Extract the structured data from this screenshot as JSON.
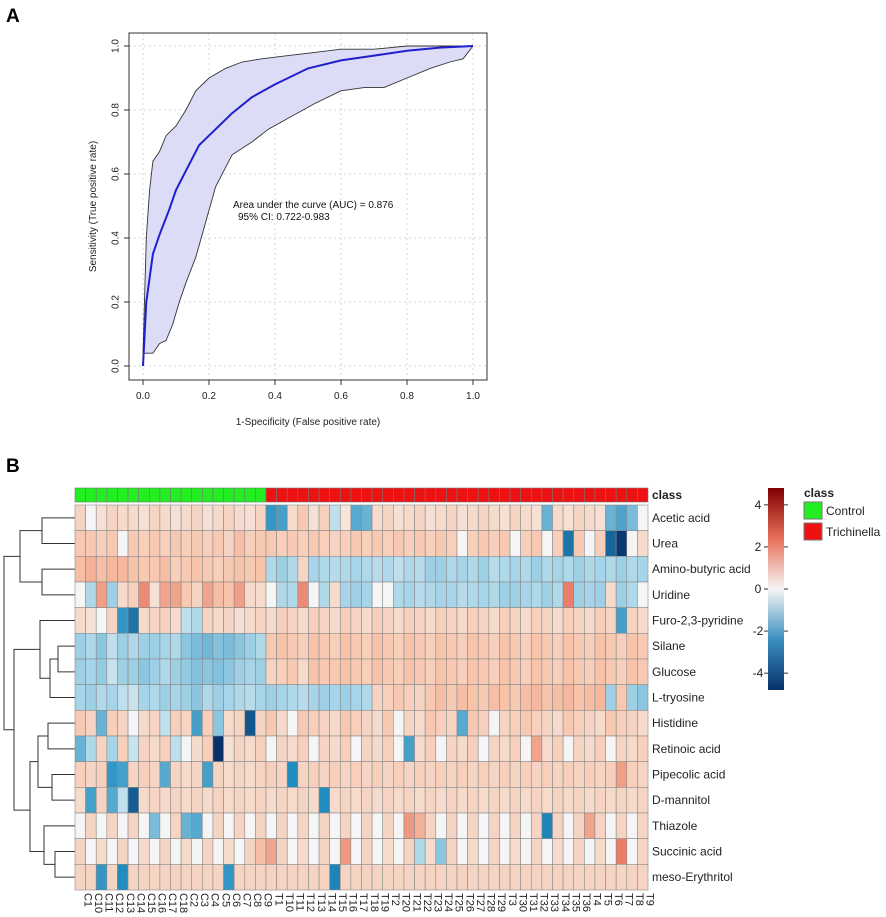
{
  "panel_labels": {
    "a": "A",
    "b": "B"
  },
  "colors": {
    "roc_line": "#1f1fcc",
    "ci_fill": "#dcdcf6",
    "ci_border": "#333333",
    "control": "#22ee22",
    "trichinella": "#ee1111",
    "neg": "#08306b",
    "mid": "#f5f5f5",
    "pos": "#7f0000"
  },
  "chart_data": [
    {
      "type": "line",
      "title": "",
      "xlabel": "1-Specificity (False positive rate)",
      "ylabel": "Sensitivity (True positive rate)",
      "xlim": [
        0,
        1
      ],
      "ylim": [
        0,
        1
      ],
      "xticks": [
        "0.0",
        "0.2",
        "0.4",
        "0.6",
        "0.8",
        "1.0"
      ],
      "yticks": [
        "0.0",
        "0.2",
        "0.4",
        "0.6",
        "0.8",
        "1.0"
      ],
      "grid": true,
      "annotation": {
        "line1": "Area under the curve (AUC) = 0.876",
        "line2": "95% CI: 0.722-0.983"
      },
      "roc": {
        "x": [
          0,
          0.01,
          0.03,
          0.05,
          0.08,
          0.1,
          0.13,
          0.17,
          0.22,
          0.27,
          0.33,
          0.4,
          0.5,
          0.6,
          0.7,
          0.8,
          0.9,
          1.0
        ],
        "y": [
          0,
          0.2,
          0.35,
          0.41,
          0.49,
          0.55,
          0.61,
          0.69,
          0.74,
          0.79,
          0.84,
          0.88,
          0.93,
          0.955,
          0.97,
          0.985,
          0.995,
          1.0
        ]
      },
      "ci_upper": {
        "x": [
          0,
          0.01,
          0.02,
          0.03,
          0.05,
          0.07,
          0.1,
          0.13,
          0.16,
          0.2,
          0.25,
          0.3,
          0.36,
          0.44,
          0.52,
          0.6,
          0.7,
          0.8,
          0.9,
          1.0
        ],
        "y": [
          0.04,
          0.4,
          0.55,
          0.64,
          0.67,
          0.72,
          0.75,
          0.8,
          0.86,
          0.9,
          0.93,
          0.95,
          0.96,
          0.97,
          0.98,
          0.99,
          0.99,
          1.0,
          1.0,
          1.0
        ]
      },
      "ci_lower": {
        "x": [
          0,
          0.03,
          0.05,
          0.07,
          0.09,
          0.11,
          0.13,
          0.16,
          0.19,
          0.22,
          0.27,
          0.33,
          0.38,
          0.45,
          0.52,
          0.6,
          0.67,
          0.73,
          0.8,
          0.87,
          0.93,
          0.97,
          1.0
        ],
        "y": [
          0.04,
          0.04,
          0.07,
          0.08,
          0.13,
          0.2,
          0.26,
          0.34,
          0.45,
          0.56,
          0.66,
          0.7,
          0.74,
          0.78,
          0.82,
          0.86,
          0.87,
          0.87,
          0.9,
          0.93,
          0.95,
          0.96,
          1.0
        ]
      }
    },
    {
      "type": "heatmap",
      "annotation_title": "class",
      "legend": [
        {
          "label": "Control"
        },
        {
          "label": "Trichinella"
        }
      ],
      "colorbar_ticks": [
        "4",
        "2",
        "0",
        "-2",
        "-4"
      ],
      "colorbar_range": [
        -4.8,
        4.8
      ],
      "rows": [
        "Acetic acid",
        "Urea",
        "Amino-butyric acid",
        "Uridine",
        "Furo-2,3-pyridine",
        "Silane",
        "Glucose",
        "L-tryosine",
        "Histidine",
        "Retinoic acid",
        "Pipecolic acid",
        "D-mannitol",
        "Thiazole",
        "Succinic acid",
        "meso-Erythritol"
      ],
      "columns": [
        "C1",
        "C10",
        "C11",
        "C12",
        "C13",
        "C14",
        "C15",
        "C16",
        "C17",
        "C18",
        "C2",
        "C3",
        "C4",
        "C5",
        "C6",
        "C7",
        "C8",
        "C9",
        "T1",
        "T10",
        "T11",
        "T12",
        "T13",
        "T14",
        "T15",
        "T16",
        "T17",
        "T18",
        "T19",
        "T2",
        "T20",
        "T21",
        "T22",
        "T23",
        "T24",
        "T25",
        "T26",
        "T27",
        "T28",
        "T29",
        "T3",
        "T30",
        "T31",
        "T32",
        "T33",
        "T34",
        "T35",
        "T36",
        "T4",
        "T5",
        "T6",
        "T7",
        "T8",
        "T9"
      ],
      "column_class": [
        "Control",
        "Control",
        "Control",
        "Control",
        "Control",
        "Control",
        "Control",
        "Control",
        "Control",
        "Control",
        "Control",
        "Control",
        "Control",
        "Control",
        "Control",
        "Control",
        "Control",
        "Control",
        "Trichinella",
        "Trichinella",
        "Trichinella",
        "Trichinella",
        "Trichinella",
        "Trichinella",
        "Trichinella",
        "Trichinella",
        "Trichinella",
        "Trichinella",
        "Trichinella",
        "Trichinella",
        "Trichinella",
        "Trichinella",
        "Trichinella",
        "Trichinella",
        "Trichinella",
        "Trichinella",
        "Trichinella",
        "Trichinella",
        "Trichinella",
        "Trichinella",
        "Trichinella",
        "Trichinella",
        "Trichinella",
        "Trichinella",
        "Trichinella",
        "Trichinella",
        "Trichinella",
        "Trichinella",
        "Trichinella",
        "Trichinella",
        "Trichinella",
        "Trichinella",
        "Trichinella",
        "Trichinella"
      ],
      "values": [
        [
          0.6,
          0.0,
          0.4,
          0.6,
          0.5,
          0.5,
          0.4,
          0.6,
          0.5,
          0.4,
          0.5,
          0.6,
          0.4,
          0.5,
          0.6,
          0.5,
          0.4,
          0.6,
          -2.2,
          -2.0,
          0.5,
          0.8,
          0.4,
          0.7,
          -0.6,
          0.3,
          -1.8,
          -1.6,
          0.5,
          0.6,
          0.4,
          0.5,
          0.6,
          0.4,
          0.5,
          0.6,
          0.4,
          0.5,
          0.6,
          0.5,
          0.4,
          0.6,
          0.5,
          0.4,
          -1.6,
          0.5,
          0.4,
          0.6,
          0.5,
          0.4,
          -1.6,
          -1.9,
          -1.4,
          0.0
        ],
        [
          0.8,
          0.8,
          0.7,
          0.8,
          0.0,
          0.8,
          0.7,
          0.8,
          0.7,
          0.8,
          0.7,
          0.8,
          0.7,
          0.8,
          0.6,
          1.0,
          0.7,
          0.8,
          0.8,
          0.7,
          0.8,
          0.7,
          0.8,
          0.7,
          0.6,
          0.7,
          0.8,
          0.7,
          0.8,
          0.7,
          0.8,
          0.7,
          0.8,
          0.7,
          0.8,
          0.7,
          0.0,
          0.7,
          0.8,
          0.7,
          0.8,
          0.0,
          0.7,
          0.8,
          0.0,
          0.7,
          -3.0,
          0.8,
          0.0,
          0.7,
          -3.4,
          -4.6,
          0.0,
          0.5
        ],
        [
          1.0,
          1.2,
          1.0,
          1.1,
          1.1,
          0.9,
          0.8,
          0.8,
          1.0,
          0.7,
          0.8,
          0.9,
          0.8,
          0.7,
          0.8,
          0.9,
          0.8,
          0.9,
          -0.8,
          -1.0,
          -0.8,
          0.6,
          -0.9,
          -0.8,
          -0.7,
          -0.8,
          -0.9,
          -0.8,
          -0.7,
          -0.8,
          -0.6,
          -0.8,
          -0.7,
          -1.0,
          -1.0,
          -0.8,
          -0.9,
          -0.8,
          -1.0,
          -0.7,
          -0.8,
          -0.9,
          -0.8,
          -1.0,
          -0.8,
          -0.9,
          -0.8,
          -1.0,
          -0.8,
          -0.9,
          -0.8,
          -1.0,
          -0.8,
          -0.9
        ],
        [
          0.0,
          -0.8,
          1.5,
          -1.0,
          0.5,
          0.7,
          1.8,
          0.4,
          1.4,
          1.4,
          0.8,
          0.6,
          1.4,
          1.0,
          0.9,
          1.5,
          0.5,
          0.5,
          0.0,
          -0.8,
          -0.8,
          1.8,
          0.0,
          -0.8,
          0.5,
          -0.9,
          -1.0,
          -0.9,
          0.0,
          0.0,
          -0.8,
          -0.9,
          -0.7,
          -0.8,
          -0.9,
          -0.9,
          -0.7,
          -0.8,
          -0.9,
          -0.8,
          -1.0,
          -1.0,
          -0.9,
          -0.8,
          -1.0,
          -0.8,
          2.0,
          -1.0,
          -0.9,
          -1.0,
          0.5,
          -1.0,
          -0.8,
          0.0
        ],
        [
          0.5,
          0.4,
          0.0,
          0.6,
          -2.2,
          -3.0,
          0.5,
          0.6,
          0.7,
          0.5,
          -0.6,
          -0.8,
          0.6,
          0.5,
          0.6,
          0.4,
          0.5,
          0.6,
          0.5,
          0.7,
          0.6,
          0.5,
          0.7,
          0.6,
          0.5,
          0.7,
          0.6,
          0.5,
          0.7,
          0.6,
          0.5,
          0.7,
          0.6,
          0.5,
          0.7,
          0.6,
          0.5,
          0.7,
          0.6,
          0.5,
          0.7,
          0.6,
          0.5,
          0.7,
          0.6,
          0.5,
          0.7,
          0.6,
          0.5,
          0.7,
          0.6,
          -2.0,
          0.6,
          0.5
        ],
        [
          -1.0,
          -0.8,
          -1.2,
          -0.6,
          -1.0,
          -0.8,
          -1.0,
          -1.0,
          -0.9,
          -0.8,
          -1.2,
          -1.4,
          -1.5,
          -1.3,
          -1.4,
          -1.2,
          -1.0,
          -0.8,
          0.8,
          0.9,
          0.8,
          0.7,
          0.9,
          0.8,
          0.7,
          0.9,
          0.8,
          0.7,
          0.9,
          0.8,
          0.7,
          0.9,
          0.8,
          0.7,
          0.9,
          0.8,
          0.7,
          0.9,
          0.8,
          0.7,
          0.9,
          0.8,
          0.7,
          0.9,
          0.8,
          0.7,
          0.9,
          0.8,
          0.7,
          0.9,
          0.8,
          0.7,
          0.9,
          0.8
        ],
        [
          -1.0,
          -0.9,
          -1.1,
          -0.5,
          -1.0,
          -1.0,
          -1.2,
          -1.0,
          -0.8,
          -1.0,
          -1.1,
          -1.3,
          -1.2,
          -1.3,
          -1.2,
          -1.0,
          -0.9,
          -1.0,
          0.6,
          0.7,
          0.8,
          0.5,
          0.9,
          0.8,
          0.8,
          0.9,
          0.8,
          0.7,
          0.9,
          0.8,
          0.7,
          0.9,
          0.8,
          0.7,
          0.9,
          0.8,
          0.7,
          0.9,
          0.8,
          0.7,
          0.9,
          0.8,
          0.7,
          0.9,
          0.8,
          0.7,
          0.9,
          0.8,
          0.7,
          0.9,
          0.8,
          0.7,
          0.9,
          0.8
        ],
        [
          -0.9,
          -1.0,
          -0.8,
          -0.9,
          -0.6,
          -0.5,
          -0.9,
          -0.8,
          -1.0,
          -0.9,
          -1.0,
          -1.2,
          -0.8,
          -1.0,
          -0.9,
          -0.8,
          -0.7,
          -0.9,
          -1.0,
          -0.9,
          -0.8,
          -0.7,
          -0.9,
          -1.0,
          -0.9,
          -1.0,
          -0.9,
          -0.8,
          0.6,
          0.7,
          0.8,
          0.7,
          0.6,
          0.8,
          1.0,
          0.8,
          1.0,
          0.9,
          0.8,
          1.0,
          0.9,
          0.8,
          1.0,
          1.1,
          0.9,
          1.0,
          1.1,
          0.9,
          1.0,
          1.1,
          -1.0,
          0.8,
          -1.0,
          -1.2
        ],
        [
          0.8,
          0.6,
          -1.6,
          0.7,
          0.6,
          0.0,
          0.5,
          0.6,
          -0.6,
          0.7,
          0.6,
          -2.0,
          0.7,
          -1.2,
          0.5,
          0.6,
          -3.8,
          0.6,
          0.8,
          0.5,
          0.0,
          0.8,
          0.7,
          0.6,
          0.5,
          0.8,
          0.7,
          0.6,
          0.5,
          0.8,
          0.0,
          0.6,
          0.5,
          0.8,
          0.7,
          0.6,
          -1.8,
          0.8,
          0.7,
          0.0,
          0.6,
          0.7,
          0.8,
          0.7,
          0.6,
          0.5,
          0.8,
          0.7,
          0.6,
          0.5,
          0.8,
          0.7,
          0.6,
          0.5
        ],
        [
          -1.6,
          -0.8,
          0.6,
          -0.9,
          0.7,
          -0.5,
          0.6,
          0.5,
          0.7,
          -0.6,
          0.0,
          0.5,
          0.7,
          -4.8,
          0.4,
          0.6,
          0.5,
          0.7,
          0.0,
          0.6,
          0.5,
          0.7,
          0.0,
          0.6,
          0.5,
          0.7,
          0.0,
          0.6,
          0.5,
          0.7,
          0.0,
          -2.0,
          0.5,
          0.7,
          0.0,
          0.6,
          0.5,
          0.7,
          0.0,
          0.6,
          0.5,
          0.7,
          0.0,
          1.4,
          0.5,
          0.7,
          0.0,
          0.6,
          0.5,
          0.7,
          0.0,
          0.6,
          0.5,
          0.7
        ],
        [
          0.7,
          0.6,
          0.7,
          -2.2,
          -2.0,
          0.6,
          0.7,
          0.6,
          -1.8,
          0.6,
          0.5,
          0.6,
          -2.0,
          0.6,
          0.5,
          0.6,
          0.5,
          0.6,
          0.7,
          0.6,
          -2.4,
          0.6,
          0.7,
          0.6,
          0.7,
          0.6,
          0.7,
          0.6,
          0.7,
          0.6,
          0.7,
          0.6,
          0.7,
          0.6,
          0.7,
          0.6,
          0.7,
          0.6,
          0.7,
          0.6,
          0.7,
          0.6,
          0.7,
          0.6,
          0.7,
          0.6,
          0.7,
          0.6,
          0.7,
          0.6,
          0.7,
          1.5,
          0.7,
          0.6
        ],
        [
          0.5,
          -2.0,
          0.6,
          -1.8,
          -0.6,
          -3.6,
          0.5,
          0.6,
          0.5,
          0.6,
          0.5,
          0.6,
          0.5,
          0.6,
          0.5,
          0.6,
          0.5,
          0.6,
          0.5,
          0.6,
          0.5,
          0.6,
          0.5,
          -2.4,
          0.5,
          0.6,
          0.5,
          0.6,
          0.5,
          0.6,
          0.5,
          0.6,
          0.5,
          0.6,
          0.5,
          0.6,
          0.5,
          0.6,
          0.5,
          0.6,
          0.5,
          0.6,
          0.5,
          0.6,
          0.5,
          0.6,
          0.5,
          0.6,
          0.5,
          0.6,
          0.5,
          0.6,
          0.5,
          0.6
        ],
        [
          0.0,
          0.6,
          0.0,
          0.6,
          0.0,
          0.6,
          0.0,
          -1.4,
          0.0,
          0.6,
          -1.6,
          -1.8,
          0.0,
          0.6,
          0.0,
          0.6,
          0.0,
          0.6,
          0.0,
          0.6,
          0.0,
          0.6,
          0.0,
          0.6,
          0.0,
          0.6,
          0.0,
          0.6,
          0.0,
          0.6,
          0.0,
          1.6,
          1.2,
          0.6,
          0.0,
          0.6,
          0.0,
          0.6,
          0.0,
          0.6,
          0.0,
          0.6,
          0.0,
          0.6,
          -2.6,
          0.6,
          0.0,
          0.6,
          1.4,
          0.6,
          0.0,
          0.6,
          0.0,
          0.6
        ],
        [
          0.6,
          0.0,
          0.5,
          0.0,
          0.6,
          0.0,
          0.5,
          0.0,
          0.6,
          0.0,
          0.5,
          0.0,
          0.6,
          0.0,
          0.5,
          0.0,
          0.6,
          1.0,
          1.4,
          0.6,
          0.0,
          0.5,
          0.0,
          0.6,
          0.0,
          1.6,
          0.0,
          0.6,
          0.0,
          0.5,
          0.0,
          0.6,
          -0.8,
          0.5,
          -1.2,
          0.6,
          0.0,
          0.5,
          0.0,
          0.6,
          0.0,
          0.5,
          0.0,
          0.6,
          0.0,
          0.5,
          0.0,
          0.6,
          0.0,
          0.5,
          0.0,
          2.0,
          0.0,
          0.6
        ],
        [
          0.6,
          0.6,
          -2.2,
          0.6,
          -2.4,
          0.6,
          0.6,
          0.6,
          0.6,
          0.6,
          0.6,
          0.6,
          0.6,
          0.6,
          -2.2,
          0.6,
          0.6,
          0.6,
          0.6,
          0.6,
          0.6,
          0.6,
          0.6,
          0.6,
          -2.6,
          0.6,
          0.6,
          0.6,
          0.6,
          0.6,
          0.6,
          0.6,
          0.6,
          0.6,
          0.6,
          0.6,
          0.6,
          0.6,
          0.6,
          0.6,
          0.6,
          0.6,
          0.6,
          0.6,
          0.6,
          0.6,
          0.6,
          0.6,
          0.6,
          0.6,
          0.6,
          0.6,
          0.6,
          0.6
        ]
      ]
    }
  ]
}
